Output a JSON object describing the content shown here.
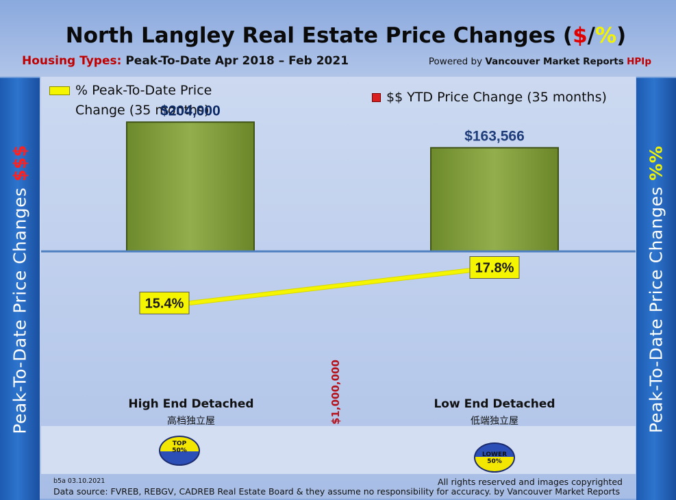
{
  "header": {
    "title_prefix": "North Langley Real Estate Price Changes (",
    "title_dollar": "$",
    "title_slash": "/",
    "title_percent": "%",
    "title_suffix": ")",
    "subtitle_label": "Housing Types:",
    "subtitle_period": "Peak-To-Date Apr 2018 – Feb 2021",
    "powered_prefix": "Powered by ",
    "powered_brand": "Vancouver Market Reports",
    "powered_hpi": "HPIp"
  },
  "side": {
    "left_text": "Peak-To-Date Price Changes ",
    "left_symbol": "$$$",
    "right_text": "Peak-To-Date  Price  Changes  ",
    "right_symbol": "%%"
  },
  "legend": {
    "pct_line1": "% Peak-To-Date Price",
    "pct_line2": "Change (35 months)",
    "dollar": "$$ YTD Price Change (35 months)"
  },
  "categories": {
    "high_en": "High End Detached",
    "high_zh": "高档独立屋",
    "low_en": "Low End Detached",
    "low_zh": "低端独立屋",
    "divider": "$1,000,000"
  },
  "badges": {
    "top_line1": "TOP",
    "top_line2": "50%",
    "lower_line1": "LOWER",
    "lower_line2": "50%"
  },
  "footer": {
    "code": "b5a 03.10.2021",
    "rights": "All rights reserved and  images copyrighted",
    "source": "Data source: FVREB, REBGV, CADREB Real Estate Board & they assume no responsibility for accuracy. by Vancouver Market Reports"
  },
  "colors": {
    "bar": "#7f9a3c",
    "line": "#f5f500",
    "baseline": "#4f7fbf"
  },
  "chart_data": {
    "type": "bar",
    "title": "North Langley Real Estate Price Changes ($/%)",
    "categories": [
      "High End Detached",
      "Low End Detached"
    ],
    "series": [
      {
        "name": "$$ YTD Price Change (35 months)",
        "type": "bar",
        "values": [
          204000,
          163566
        ],
        "labels": [
          "$204,000",
          "$163,566"
        ]
      },
      {
        "name": "% Peak-To-Date Price Change (35 months)",
        "type": "line",
        "values": [
          15.4,
          17.8
        ],
        "labels": [
          "15.4%",
          "17.8%"
        ]
      }
    ],
    "ylim_dollar": [
      0,
      240000
    ],
    "ylim_percent": [
      0,
      28
    ]
  }
}
